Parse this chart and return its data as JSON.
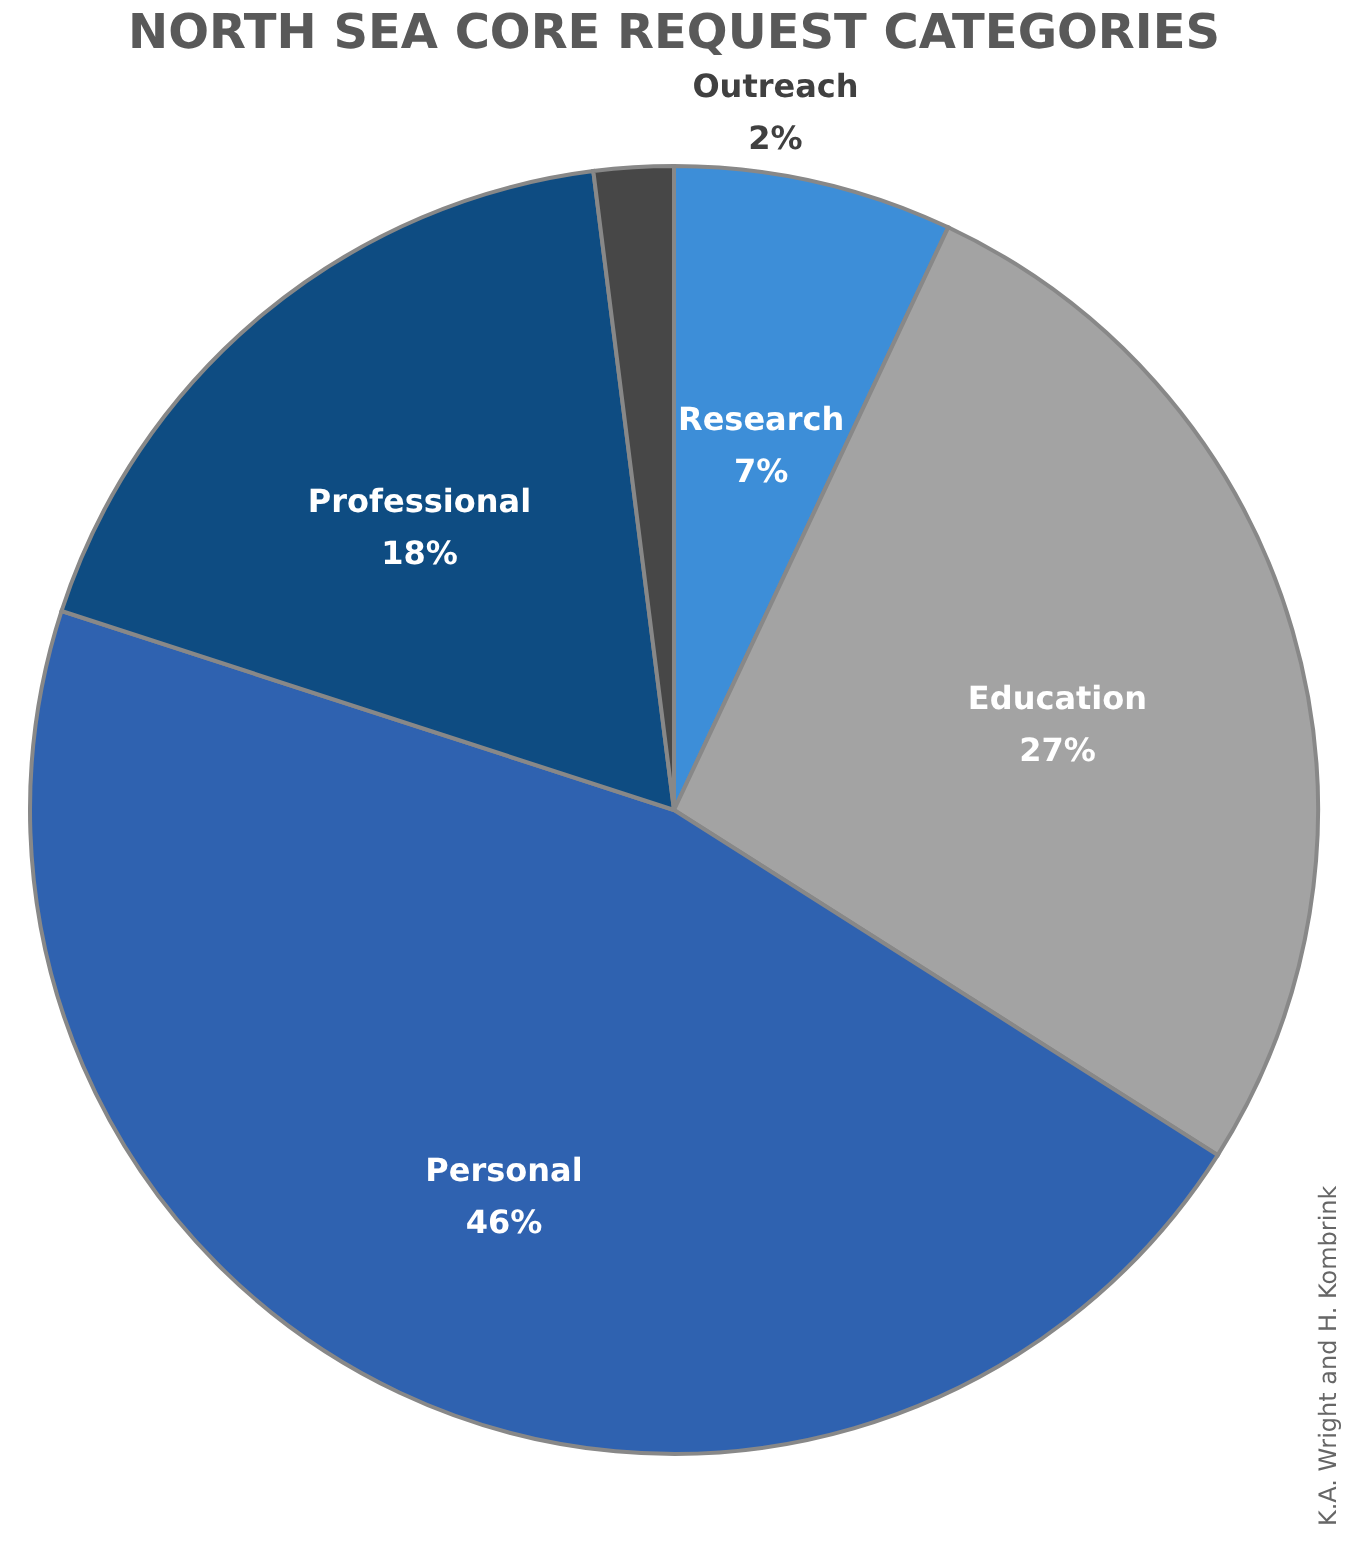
{
  "chart_data": {
    "type": "pie",
    "title": "NORTH SEA CORE REQUEST CATEGORIES",
    "categories": [
      "Research",
      "Education",
      "Personal",
      "Professional",
      "Outreach"
    ],
    "values": [
      7,
      27,
      46,
      18,
      2
    ],
    "value_labels": [
      "7%",
      "27%",
      "46%",
      "18%",
      "2%"
    ],
    "colors": [
      "#3d8ed8",
      "#a3a3a3",
      "#2f62b0",
      "#0e4c82",
      "#474747"
    ],
    "legend": false,
    "annotations": [
      "K.A. Wright and H. Kombrink"
    ]
  }
}
